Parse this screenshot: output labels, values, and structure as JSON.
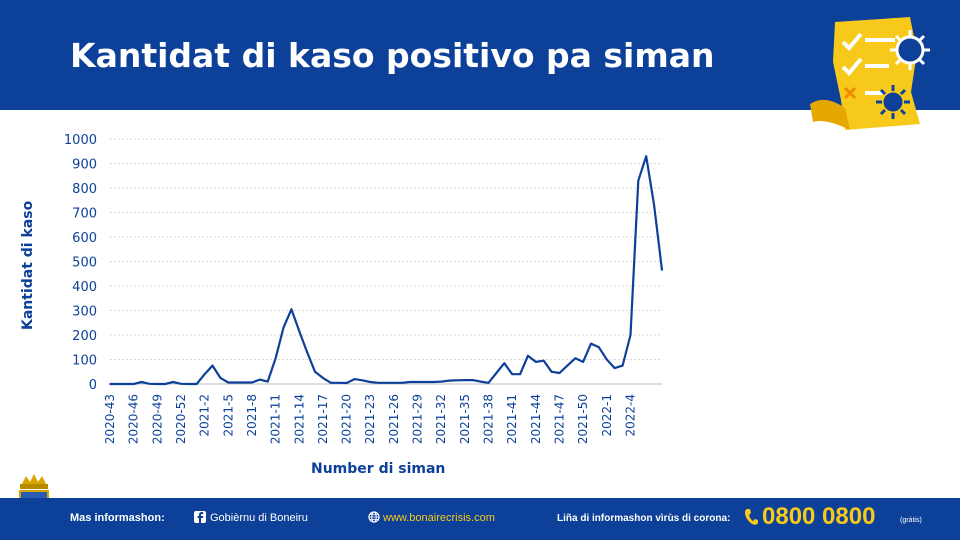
{
  "header": {
    "title": "Kantidat di kaso positivo pa siman"
  },
  "footer": {
    "more_info_label": "Mas informashon:",
    "facebook_label": "Gobièrnu di Boneiru",
    "website_label": "www.bonairecrisis.com",
    "hotline_label": "Liña di informashon vìrùs di corona:",
    "hotline_number": "0800 0800",
    "hotline_note": "(grátis)"
  },
  "colors": {
    "brand_blue": "#0d4199",
    "accent_yellow": "#f7c91a",
    "line": "#0d4199"
  },
  "icons": [
    "checklist-virus-icon",
    "coat-of-arms-icon",
    "facebook-icon",
    "globe-icon",
    "phone-icon"
  ],
  "chart_data": {
    "type": "line",
    "ylabel": "Kantidat di kaso",
    "xlabel": "Number di siman",
    "ylim": [
      0,
      1000
    ],
    "yticks": [
      0,
      100,
      200,
      300,
      400,
      500,
      600,
      700,
      800,
      900,
      1000
    ],
    "tick_labels": [
      "2020-43",
      "2020-46",
      "2020-49",
      "2020-52",
      "2021-2",
      "2021-5",
      "2021-8",
      "2021-11",
      "2021-14",
      "2021-17",
      "2021-20",
      "2021-23",
      "2021-26",
      "2021-29",
      "2021-32",
      "2021-35",
      "2021-38",
      "2021-41",
      "2021-44",
      "2021-47",
      "2021-50",
      "2022-1",
      "2022-4"
    ],
    "grid": "horizontal",
    "series": [
      {
        "values": [
          0,
          0,
          0,
          0,
          8,
          1,
          0,
          0,
          8,
          1,
          0,
          0,
          40,
          75,
          25,
          6,
          6,
          6,
          6,
          18,
          10,
          105,
          230,
          305,
          215,
          130,
          50,
          25,
          5,
          5,
          4,
          20,
          15,
          8,
          5,
          5,
          5,
          5,
          8,
          8,
          8,
          8,
          10,
          14,
          15,
          16,
          16,
          10,
          5,
          45,
          85,
          40,
          40,
          115,
          90,
          95,
          50,
          45,
          75,
          105,
          90,
          165,
          150,
          100,
          65,
          75,
          200,
          830,
          930,
          730,
          465
        ]
      }
    ]
  }
}
